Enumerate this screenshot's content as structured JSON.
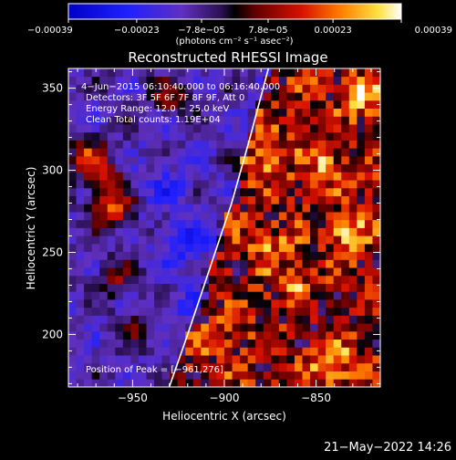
{
  "chart_data": {
    "type": "heatmap",
    "title": "Reconstructed RHESSI Image",
    "xlabel": "Heliocentric X (arcsec)",
    "ylabel": "Heliocentric Y (arcsec)",
    "xlim": [
      -985,
      -815
    ],
    "ylim": [
      168,
      362
    ],
    "x_ticks": [
      -950,
      -900,
      -850
    ],
    "y_ticks": [
      200,
      250,
      300,
      350
    ],
    "x_tick_labels": [
      "−950",
      "−900",
      "−850"
    ],
    "y_tick_labels": [
      "200",
      "250",
      "300",
      "350"
    ],
    "colorbar": {
      "range": [
        -0.00039,
        0.00039
      ],
      "tick_values": [
        -0.00039,
        -0.00023,
        -7.8e-05,
        7.8e-05,
        0.00023,
        0.00039
      ],
      "tick_labels": [
        "−0.00039",
        "−0.00023",
        "−7.8e−05",
        "7.8e−05",
        "0.00023",
        "0.00039"
      ],
      "unit_label": "(photons cm⁻² s⁻¹ asec⁻²)"
    },
    "annotations": [
      "4−Jun−2015 06:10:40.000 to 06:16:40.000",
      "Detectors: 3F 5F 6F 7F 8F 9F, Att 0",
      "Energy Range: 12.0 − 25.0 keV",
      "Clean     Total counts: 1.19E+04"
    ],
    "peak_label": "Position of Peak = [−961,276]",
    "peak": {
      "x": -961,
      "y": 276
    },
    "limb_curve": [
      [
        -930,
        168
      ],
      [
        -920,
        200
      ],
      [
        -908,
        240
      ],
      [
        -896,
        280
      ],
      [
        -886,
        320
      ],
      [
        -876,
        362
      ]
    ],
    "hotspots": [
      {
        "x": -961,
        "y": 276,
        "level": 1.0
      },
      {
        "x": -975,
        "y": 308,
        "level": 0.85
      },
      {
        "x": -965,
        "y": 295,
        "level": 0.6
      },
      {
        "x": -842,
        "y": 183,
        "level": 0.9
      },
      {
        "x": -825,
        "y": 345,
        "level": 0.75
      },
      {
        "x": -833,
        "y": 262,
        "level": 0.7
      },
      {
        "x": -878,
        "y": 305,
        "level": 0.6
      },
      {
        "x": -863,
        "y": 230,
        "level": 0.55
      },
      {
        "x": -905,
        "y": 200,
        "level": 0.5
      },
      {
        "x": -930,
        "y": 345,
        "level": 0.55
      },
      {
        "x": -948,
        "y": 205,
        "level": 0.45
      },
      {
        "x": -960,
        "y": 235,
        "level": 0.5
      },
      {
        "x": -845,
        "y": 305,
        "level": 0.55
      },
      {
        "x": -875,
        "y": 255,
        "level": 0.45
      }
    ],
    "cool_regions": [
      {
        "x": -920,
        "y": 255,
        "level": 0.6
      },
      {
        "x": -930,
        "y": 290,
        "level": 0.4
      },
      {
        "x": -915,
        "y": 215,
        "level": 0.45
      },
      {
        "x": -855,
        "y": 215,
        "level": 0.3
      }
    ]
  },
  "footer": {
    "timestamp": "21−May−2022 14:26"
  }
}
